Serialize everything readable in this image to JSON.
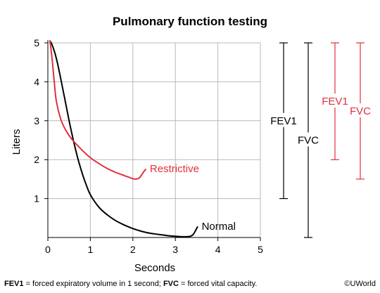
{
  "chart_data": {
    "type": "line",
    "title": "Pulmonary function testing",
    "xlabel": "Seconds",
    "ylabel": "Liters",
    "xlim": [
      0,
      5
    ],
    "ylim": [
      0,
      5.2
    ],
    "xticks": [
      "0",
      "1",
      "2",
      "3",
      "4",
      "5"
    ],
    "yticks": [
      "1",
      "2",
      "3",
      "4",
      "5"
    ],
    "grid": true,
    "series": [
      {
        "name": "Normal",
        "color": "#000000",
        "x": [
          0.05,
          0.1,
          0.2,
          0.3,
          0.4,
          0.5,
          0.6,
          0.7,
          0.8,
          0.9,
          1.0,
          1.2,
          1.4,
          1.6,
          1.8,
          2.0,
          2.2,
          2.4,
          2.6,
          2.8,
          3.0,
          3.2,
          3.35,
          3.42,
          3.47,
          3.52
        ],
        "y": [
          5.05,
          4.95,
          4.6,
          4.1,
          3.55,
          3.0,
          2.5,
          2.05,
          1.68,
          1.36,
          1.1,
          0.78,
          0.58,
          0.43,
          0.32,
          0.23,
          0.16,
          0.11,
          0.08,
          0.05,
          0.03,
          0.02,
          0.03,
          0.08,
          0.17,
          0.27
        ]
      },
      {
        "name": "Restrictive",
        "color": "#e0303d",
        "x": [
          0.05,
          0.1,
          0.15,
          0.2,
          0.3,
          0.4,
          0.5,
          0.6,
          0.8,
          1.0,
          1.2,
          1.4,
          1.6,
          1.8,
          1.9,
          2.0,
          2.08,
          2.15,
          2.2,
          2.25,
          2.3
        ],
        "y": [
          5.05,
          4.6,
          4.0,
          3.5,
          3.05,
          2.8,
          2.62,
          2.48,
          2.25,
          2.05,
          1.9,
          1.77,
          1.67,
          1.59,
          1.55,
          1.51,
          1.5,
          1.53,
          1.6,
          1.68,
          1.75
        ]
      }
    ],
    "brackets": [
      {
        "label": "FEV1",
        "color": "#000000",
        "from": 1.0,
        "to": 5.0
      },
      {
        "label": "FVC",
        "color": "#000000",
        "from": 0.0,
        "to": 5.0
      },
      {
        "label": "FEV1",
        "color": "#e0303d",
        "from": 2.0,
        "to": 5.0
      },
      {
        "label": "FVC",
        "color": "#e0303d",
        "from": 1.5,
        "to": 5.0
      }
    ]
  },
  "footnote": {
    "fev1_term": "FEV1",
    "fev1_def": " = forced expiratory volume in 1 second; ",
    "fvc_term": "FVC",
    "fvc_def": " = forced vital capacity."
  },
  "brand": "©UWorld"
}
